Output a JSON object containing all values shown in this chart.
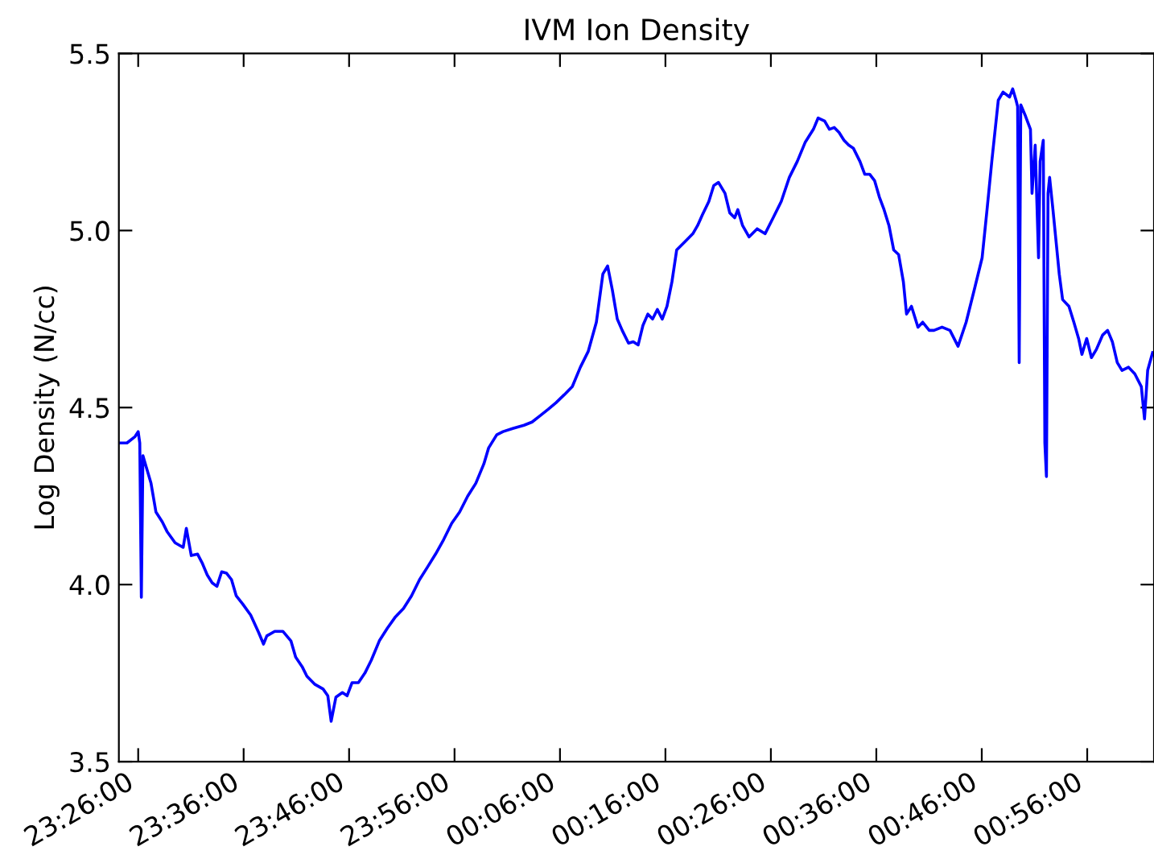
{
  "chart_data": {
    "type": "line",
    "title": "IVM Ion Density",
    "ylabel": "Log Density (N/cc)",
    "xlim": [
      "2000-01-01T23:24:10",
      "2000-01-02T01:02:20"
    ],
    "ylim": [
      3.5,
      5.5
    ],
    "xticks": [
      {
        "value": "2000-01-01T23:26:00",
        "label": "23:26:00"
      },
      {
        "value": "2000-01-01T23:36:00",
        "label": "23:36:00"
      },
      {
        "value": "2000-01-01T23:46:00",
        "label": "23:46:00"
      },
      {
        "value": "2000-01-01T23:56:00",
        "label": "23:56:00"
      },
      {
        "value": "2000-01-02T00:06:00",
        "label": "00:06:00"
      },
      {
        "value": "2000-01-02T00:16:00",
        "label": "00:16:00"
      },
      {
        "value": "2000-01-02T00:26:00",
        "label": "00:26:00"
      },
      {
        "value": "2000-01-02T00:36:00",
        "label": "00:36:00"
      },
      {
        "value": "2000-01-02T00:46:00",
        "label": "00:46:00"
      },
      {
        "value": "2000-01-02T00:56:00",
        "label": "00:56:00"
      }
    ],
    "yticks": [
      3.5,
      {
        "value": 4,
        "label": "4.0"
      },
      4.5,
      {
        "value": 5,
        "label": "5.0"
      },
      5.5
    ],
    "grid": false,
    "marker": "none",
    "line_style": "solid",
    "series": [
      {
        "color": "#0000ff",
        "x": [
          "2000-01-01T23:24:19",
          "2000-01-01T23:24:56",
          "2000-01-01T23:25:42",
          "2000-01-01T23:26:00",
          "2000-01-01T23:26:09",
          "2000-01-01T23:26:18",
          "2000-01-01T23:26:27",
          "2000-01-01T23:26:46",
          "2000-01-01T23:27:13",
          "2000-01-01T23:27:41",
          "2000-01-01T23:28:17",
          "2000-01-01T23:28:44",
          "2000-01-01T23:29:30",
          "2000-01-01T23:30:16",
          "2000-01-01T23:30:34",
          "2000-01-01T23:31:02",
          "2000-01-01T23:31:38",
          "2000-01-01T23:32:06",
          "2000-01-01T23:32:33",
          "2000-01-01T23:33:01",
          "2000-01-01T23:33:28",
          "2000-01-01T23:33:55",
          "2000-01-01T23:34:23",
          "2000-01-01T23:34:51",
          "2000-01-01T23:35:18",
          "2000-01-01T23:35:55",
          "2000-01-01T23:36:40",
          "2000-01-01T23:37:26",
          "2000-01-01T23:37:53",
          "2000-01-01T23:38:12",
          "2000-01-01T23:38:57",
          "2000-01-01T23:39:43",
          "2000-01-01T23:40:29",
          "2000-01-01T23:40:56",
          "2000-01-01T23:41:33",
          "2000-01-01T23:42:00",
          "2000-01-01T23:42:46",
          "2000-01-01T23:43:32",
          "2000-01-01T23:43:59",
          "2000-01-01T23:44:18",
          "2000-01-01T23:44:45",
          "2000-01-01T23:45:22",
          "2000-01-01T23:45:49",
          "2000-01-01T23:46:17",
          "2000-01-01T23:46:53",
          "2000-01-01T23:47:30",
          "2000-01-01T23:48:06",
          "2000-01-01T23:48:52",
          "2000-01-01T23:49:38",
          "2000-01-01T23:50:24",
          "2000-01-01T23:51:09",
          "2000-01-01T23:51:55",
          "2000-01-01T23:52:41",
          "2000-01-01T23:53:27",
          "2000-01-01T23:54:12",
          "2000-01-01T23:54:58",
          "2000-01-01T23:55:44",
          "2000-01-01T23:56:29",
          "2000-01-01T23:57:15",
          "2000-01-01T23:58:01",
          "2000-01-01T23:58:47",
          "2000-01-01T23:59:14",
          "2000-01-02T00:00:00",
          "2000-01-02T00:00:36",
          "2000-01-02T00:01:31",
          "2000-01-02T00:02:35",
          "2000-01-02T00:03:21",
          "2000-01-02T00:04:07",
          "2000-01-02T00:04:53",
          "2000-01-02T00:05:38",
          "2000-01-02T00:06:24",
          "2000-01-02T00:07:10",
          "2000-01-02T00:07:56",
          "2000-01-02T00:08:41",
          "2000-01-02T00:09:27",
          "2000-01-02T00:10:04",
          "2000-01-02T00:10:31",
          "2000-01-02T00:10:58",
          "2000-01-02T00:11:26",
          "2000-01-02T00:11:54",
          "2000-01-02T00:12:30",
          "2000-01-02T00:12:57",
          "2000-01-02T00:13:25",
          "2000-01-02T00:13:52",
          "2000-01-02T00:14:20",
          "2000-01-02T00:14:47",
          "2000-01-02T00:15:14",
          "2000-01-02T00:15:42",
          "2000-01-02T00:16:09",
          "2000-01-02T00:16:37",
          "2000-01-02T00:17:04",
          "2000-01-02T00:17:50",
          "2000-01-02T00:18:36",
          "2000-01-02T00:19:03",
          "2000-01-02T00:19:31",
          "2000-01-02T00:20:07",
          "2000-01-02T00:20:35",
          "2000-01-02T00:21:02",
          "2000-01-02T00:21:39",
          "2000-01-02T00:22:06",
          "2000-01-02T00:22:34",
          "2000-01-02T00:22:52",
          "2000-01-02T00:23:19",
          "2000-01-02T00:23:56",
          "2000-01-02T00:24:42",
          "2000-01-02T00:25:27",
          "2000-01-02T00:26:13",
          "2000-01-02T00:26:59",
          "2000-01-02T00:27:45",
          "2000-01-02T00:28:30",
          "2000-01-02T00:29:16",
          "2000-01-02T00:30:02",
          "2000-01-02T00:30:29",
          "2000-01-02T00:31:06",
          "2000-01-02T00:31:33",
          "2000-01-02T00:32:01",
          "2000-01-02T00:32:28",
          "2000-01-02T00:32:56",
          "2000-01-02T00:33:23",
          "2000-01-02T00:33:50",
          "2000-01-02T00:34:27",
          "2000-01-02T00:34:54",
          "2000-01-02T00:35:22",
          "2000-01-02T00:35:50",
          "2000-01-02T00:36:17",
          "2000-01-02T00:36:44",
          "2000-01-02T00:37:12",
          "2000-01-02T00:37:39",
          "2000-01-02T00:38:07",
          "2000-01-02T00:38:34",
          "2000-01-02T00:38:52",
          "2000-01-02T00:39:20",
          "2000-01-02T00:39:57",
          "2000-01-02T00:40:24",
          "2000-01-02T00:41:01",
          "2000-01-02T00:41:28",
          "2000-01-02T00:42:14",
          "2000-01-02T00:42:59",
          "2000-01-02T00:43:45",
          "2000-01-02T00:44:31",
          "2000-01-02T00:45:17",
          "2000-01-02T00:46:02",
          "2000-01-02T00:46:30",
          "2000-01-02T00:46:57",
          "2000-01-02T00:47:34",
          "2000-01-02T00:48:01",
          "2000-01-02T00:48:38",
          "2000-01-02T00:48:56",
          "2000-01-02T00:49:15",
          "2000-01-02T00:49:24",
          "2000-01-02T00:49:33",
          "2000-01-02T00:49:42",
          "2000-01-02T00:50:09",
          "2000-01-02T00:50:37",
          "2000-01-02T00:50:46",
          "2000-01-02T00:51:04",
          "2000-01-02T00:51:23",
          "2000-01-02T00:51:32",
          "2000-01-02T00:51:50",
          "2000-01-02T00:51:59",
          "2000-01-02T00:52:08",
          "2000-01-02T00:52:17",
          "2000-01-02T00:52:26",
          "2000-01-02T00:52:45",
          "2000-01-02T00:53:03",
          "2000-01-02T00:53:21",
          "2000-01-02T00:53:40",
          "2000-01-02T00:54:16",
          "2000-01-02T00:54:44",
          "2000-01-02T00:55:11",
          "2000-01-02T00:55:30",
          "2000-01-02T00:55:57",
          "2000-01-02T00:56:24",
          "2000-01-02T00:56:52",
          "2000-01-02T00:57:28",
          "2000-01-02T00:57:56",
          "2000-01-02T00:58:23",
          "2000-01-02T00:58:51",
          "2000-01-02T00:59:18",
          "2000-01-02T00:59:55",
          "2000-01-02T01:00:31",
          "2000-01-02T01:01:08",
          "2000-01-02T01:01:26",
          "2000-01-02T01:01:44",
          "2000-01-02T01:02:12"
        ],
        "values": [
          4.4,
          4.4,
          4.418,
          4.432,
          4.4,
          3.964,
          4.364,
          4.332,
          4.286,
          4.205,
          4.177,
          4.15,
          4.118,
          4.105,
          4.159,
          4.082,
          4.086,
          4.059,
          4.027,
          4.005,
          3.995,
          4.036,
          4.032,
          4.014,
          3.968,
          3.945,
          3.914,
          3.864,
          3.832,
          3.855,
          3.868,
          3.868,
          3.841,
          3.795,
          3.768,
          3.741,
          3.718,
          3.705,
          3.686,
          3.614,
          3.682,
          3.695,
          3.686,
          3.723,
          3.723,
          3.75,
          3.786,
          3.841,
          3.877,
          3.909,
          3.932,
          3.968,
          4.014,
          4.05,
          4.086,
          4.127,
          4.173,
          4.205,
          4.25,
          4.286,
          4.341,
          4.386,
          4.423,
          4.432,
          4.441,
          4.45,
          4.459,
          4.477,
          4.495,
          4.514,
          4.536,
          4.559,
          4.614,
          4.659,
          4.741,
          4.877,
          4.9,
          4.832,
          4.75,
          4.718,
          4.682,
          4.686,
          4.677,
          4.732,
          4.764,
          4.75,
          4.777,
          4.75,
          4.786,
          4.855,
          4.945,
          4.968,
          4.991,
          5.014,
          5.045,
          5.082,
          5.127,
          5.136,
          5.105,
          5.05,
          5.036,
          5.059,
          5.014,
          4.982,
          5.005,
          4.991,
          5.036,
          5.082,
          5.15,
          5.195,
          5.25,
          5.286,
          5.318,
          5.309,
          5.286,
          5.291,
          5.277,
          5.255,
          5.241,
          5.232,
          5.195,
          5.159,
          5.159,
          5.141,
          5.095,
          5.059,
          5.014,
          4.945,
          4.932,
          4.855,
          4.764,
          4.786,
          4.727,
          4.741,
          4.718,
          4.718,
          4.727,
          4.718,
          4.673,
          4.741,
          4.832,
          4.923,
          5.059,
          5.195,
          5.368,
          5.391,
          5.377,
          5.4,
          5.368,
          5.35,
          4.627,
          5.355,
          5.323,
          5.286,
          5.105,
          5.241,
          4.923,
          5.195,
          5.255,
          4.4,
          4.305,
          5.105,
          5.15,
          5.059,
          4.968,
          4.877,
          4.805,
          4.786,
          4.741,
          4.695,
          4.65,
          4.695,
          4.641,
          4.664,
          4.705,
          4.718,
          4.686,
          4.627,
          4.605,
          4.614,
          4.595,
          4.559,
          4.468,
          4.605,
          4.655
        ]
      }
    ]
  }
}
